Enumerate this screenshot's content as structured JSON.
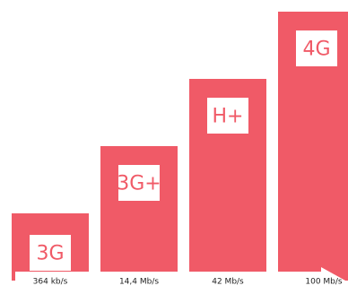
{
  "colors": {
    "bar": "#f05a67",
    "label_box": "#ffffff",
    "arrow": "#ffffff"
  },
  "chart_data": {
    "type": "bar",
    "title": "",
    "xlabel": "",
    "ylabel": "",
    "categories": [
      "3G",
      "3G+",
      "H+",
      "4G"
    ],
    "speed_labels": [
      "364 kb/s",
      "14,4 Mb/s",
      "42 Mb/s",
      "100 Mb/s"
    ],
    "values": [
      1,
      2,
      3,
      4
    ],
    "ylim": [
      0,
      4
    ],
    "grid": false,
    "legend": "none"
  }
}
